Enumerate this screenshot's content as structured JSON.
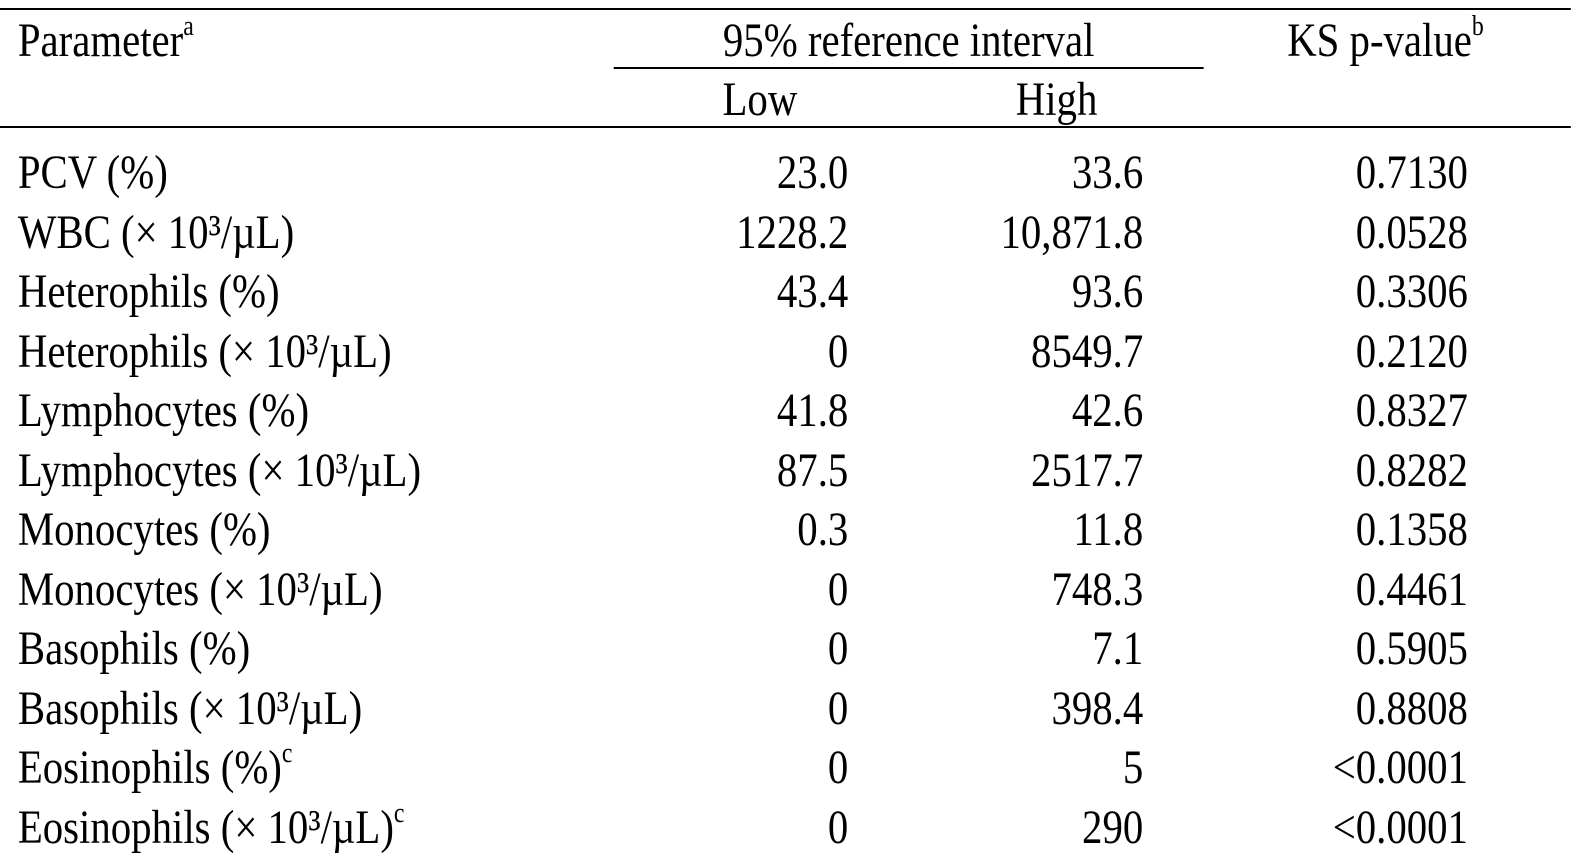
{
  "table": {
    "header": {
      "parameter": "Parameter",
      "parameter_note": "a",
      "interval_group": "95% reference interval",
      "low": "Low",
      "high": "High",
      "ks": "KS p-value",
      "ks_note": "b"
    },
    "rows": [
      {
        "parameter": "PCV (%)",
        "note": "",
        "low": "23.0",
        "high": "33.6",
        "ks": "0.7130"
      },
      {
        "parameter": "WBC (× 10³/µL)",
        "note": "",
        "low": "1228.2",
        "high": "10,871.8",
        "ks": "0.0528"
      },
      {
        "parameter": "Heterophils (%)",
        "note": "",
        "low": "43.4",
        "high": "93.6",
        "ks": "0.3306"
      },
      {
        "parameter": "Heterophils (× 10³/µL)",
        "note": "",
        "low": "0",
        "high": "8549.7",
        "ks": "0.2120"
      },
      {
        "parameter": "Lymphocytes (%)",
        "note": "",
        "low": "41.8",
        "high": "42.6",
        "ks": "0.8327"
      },
      {
        "parameter": "Lymphocytes (× 10³/µL)",
        "note": "",
        "low": "87.5",
        "high": "2517.7",
        "ks": "0.8282"
      },
      {
        "parameter": "Monocytes (%)",
        "note": "",
        "low": "0.3",
        "high": "11.8",
        "ks": "0.1358"
      },
      {
        "parameter": "Monocytes (× 10³/µL)",
        "note": "",
        "low": "0",
        "high": "748.3",
        "ks": "0.4461"
      },
      {
        "parameter": "Basophils (%)",
        "note": "",
        "low": "0",
        "high": "7.1",
        "ks": "0.5905"
      },
      {
        "parameter": "Basophils (× 10³/µL)",
        "note": "",
        "low": "0",
        "high": "398.4",
        "ks": "0.8808"
      },
      {
        "parameter": "Eosinophils (%)",
        "note": "c",
        "low": "0",
        "high": "5",
        "ks": "<0.0001"
      },
      {
        "parameter": "Eosinophils (× 10³/µL)",
        "note": "c",
        "low": "0",
        "high": "290",
        "ks": "<0.0001"
      }
    ]
  }
}
